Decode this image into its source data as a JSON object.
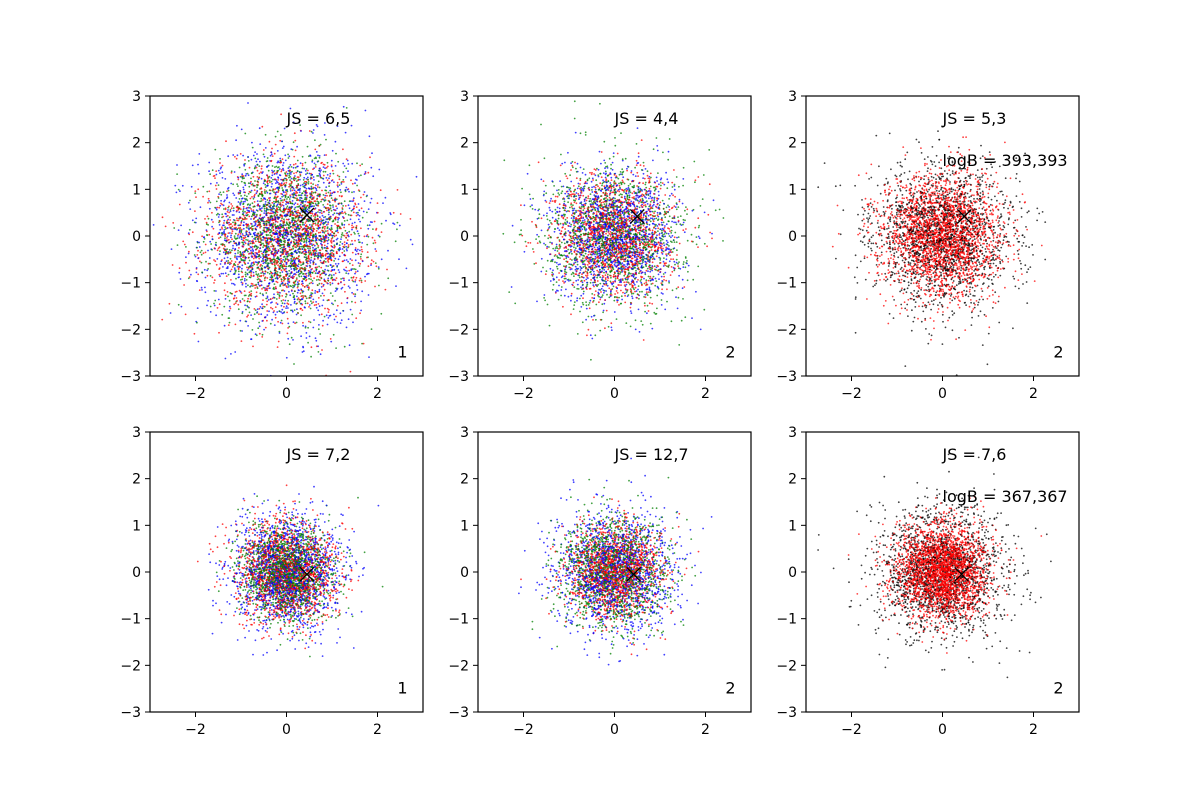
{
  "chart_data": [
    {
      "type": "scatter",
      "panel": "row1-col1",
      "xlim": [
        -3,
        3
      ],
      "ylim": [
        -3,
        3
      ],
      "xticks": [
        "−2",
        "0",
        "2"
      ],
      "yticks": [
        "−3",
        "−2",
        "−1",
        "0",
        "1",
        "2",
        "3"
      ],
      "annotations": [
        "JS = 6,5"
      ],
      "corner_label": "1",
      "marker": {
        "x": 0.45,
        "y": 0.45,
        "symbol": "x",
        "color": "#000000"
      },
      "series": [
        {
          "color": "#0000ff",
          "n_points": 1500,
          "mean": [
            0,
            0
          ],
          "std": 0.95
        },
        {
          "color": "#ff0000",
          "n_points": 1500,
          "mean": [
            0,
            0
          ],
          "std": 0.85
        },
        {
          "color": "#008000",
          "n_points": 1500,
          "mean": [
            0,
            0
          ],
          "std": 0.8
        }
      ]
    },
    {
      "type": "scatter",
      "panel": "row1-col2",
      "xlim": [
        -3,
        3
      ],
      "ylim": [
        -3,
        3
      ],
      "xticks": [
        "−2",
        "0",
        "2"
      ],
      "yticks": [
        "−3",
        "−2",
        "−1",
        "0",
        "1",
        "2",
        "3"
      ],
      "annotations": [
        "JS = 4,4"
      ],
      "corner_label": "2",
      "marker": {
        "x": 0.5,
        "y": 0.42,
        "symbol": "x",
        "color": "#000000"
      },
      "series": [
        {
          "color": "#0000ff",
          "n_points": 1400,
          "mean": [
            0,
            0
          ],
          "std": 0.7
        },
        {
          "color": "#ff0000",
          "n_points": 1400,
          "mean": [
            0,
            0
          ],
          "std": 0.65
        },
        {
          "color": "#008000",
          "n_points": 1400,
          "mean": [
            0,
            0
          ],
          "std": 0.75
        }
      ]
    },
    {
      "type": "scatter",
      "panel": "row1-col3",
      "xlim": [
        -3,
        3
      ],
      "ylim": [
        -3,
        3
      ],
      "xticks": [
        "−2",
        "0",
        "2"
      ],
      "yticks": [
        "−3",
        "−2",
        "−1",
        "0",
        "1",
        "2",
        "3"
      ],
      "annotations": [
        "JS = 5,3",
        "logB = 393,393"
      ],
      "corner_label": "2",
      "marker": {
        "x": 0.48,
        "y": 0.42,
        "symbol": "x",
        "color": "#000000"
      },
      "series": [
        {
          "color": "#000000",
          "n_points": 1800,
          "mean": [
            0,
            0
          ],
          "std": 0.75
        },
        {
          "color": "#ff0000",
          "n_points": 2400,
          "mean": [
            0,
            0
          ],
          "std": 0.65
        }
      ]
    },
    {
      "type": "scatter",
      "panel": "row2-col1",
      "xlim": [
        -3,
        3
      ],
      "ylim": [
        -3,
        3
      ],
      "xticks": [
        "−2",
        "0",
        "2"
      ],
      "yticks": [
        "−3",
        "−2",
        "−1",
        "0",
        "1",
        "2",
        "3"
      ],
      "annotations": [
        "JS = 7,2"
      ],
      "corner_label": "1",
      "marker": {
        "x": 0.45,
        "y": -0.05,
        "symbol": "x",
        "color": "#000000"
      },
      "series": [
        {
          "color": "#0000ff",
          "n_points": 1500,
          "mean": [
            0,
            0
          ],
          "std": 0.6
        },
        {
          "color": "#ff0000",
          "n_points": 1500,
          "mean": [
            0,
            0
          ],
          "std": 0.55
        },
        {
          "color": "#008000",
          "n_points": 1500,
          "mean": [
            0,
            0
          ],
          "std": 0.5
        }
      ]
    },
    {
      "type": "scatter",
      "panel": "row2-col2",
      "xlim": [
        -3,
        3
      ],
      "ylim": [
        -3,
        3
      ],
      "xticks": [
        "−2",
        "0",
        "2"
      ],
      "yticks": [
        "−3",
        "−2",
        "−1",
        "0",
        "1",
        "2",
        "3"
      ],
      "annotations": [
        "JS = 12,7"
      ],
      "corner_label": "2",
      "marker": {
        "x": 0.42,
        "y": -0.05,
        "symbol": "x",
        "color": "#000000"
      },
      "series": [
        {
          "color": "#0000ff",
          "n_points": 1400,
          "mean": [
            0,
            0
          ],
          "std": 0.65
        },
        {
          "color": "#ff0000",
          "n_points": 1400,
          "mean": [
            0,
            0
          ],
          "std": 0.5
        },
        {
          "color": "#008000",
          "n_points": 1400,
          "mean": [
            0,
            0
          ],
          "std": 0.6
        }
      ]
    },
    {
      "type": "scatter",
      "panel": "row2-col3",
      "xlim": [
        -3,
        3
      ],
      "ylim": [
        -3,
        3
      ],
      "xticks": [
        "−2",
        "0",
        "2"
      ],
      "yticks": [
        "−3",
        "−2",
        "−1",
        "0",
        "1",
        "2",
        "3"
      ],
      "annotations": [
        "JS = 7,6",
        "logB = 367,367"
      ],
      "corner_label": "2",
      "marker": {
        "x": 0.42,
        "y": -0.05,
        "symbol": "x",
        "color": "#000000"
      },
      "series": [
        {
          "color": "#000000",
          "n_points": 1800,
          "mean": [
            0,
            0
          ],
          "std": 0.7
        },
        {
          "color": "#ff0000",
          "n_points": 2600,
          "mean": [
            0,
            0
          ],
          "std": 0.5
        }
      ]
    }
  ]
}
